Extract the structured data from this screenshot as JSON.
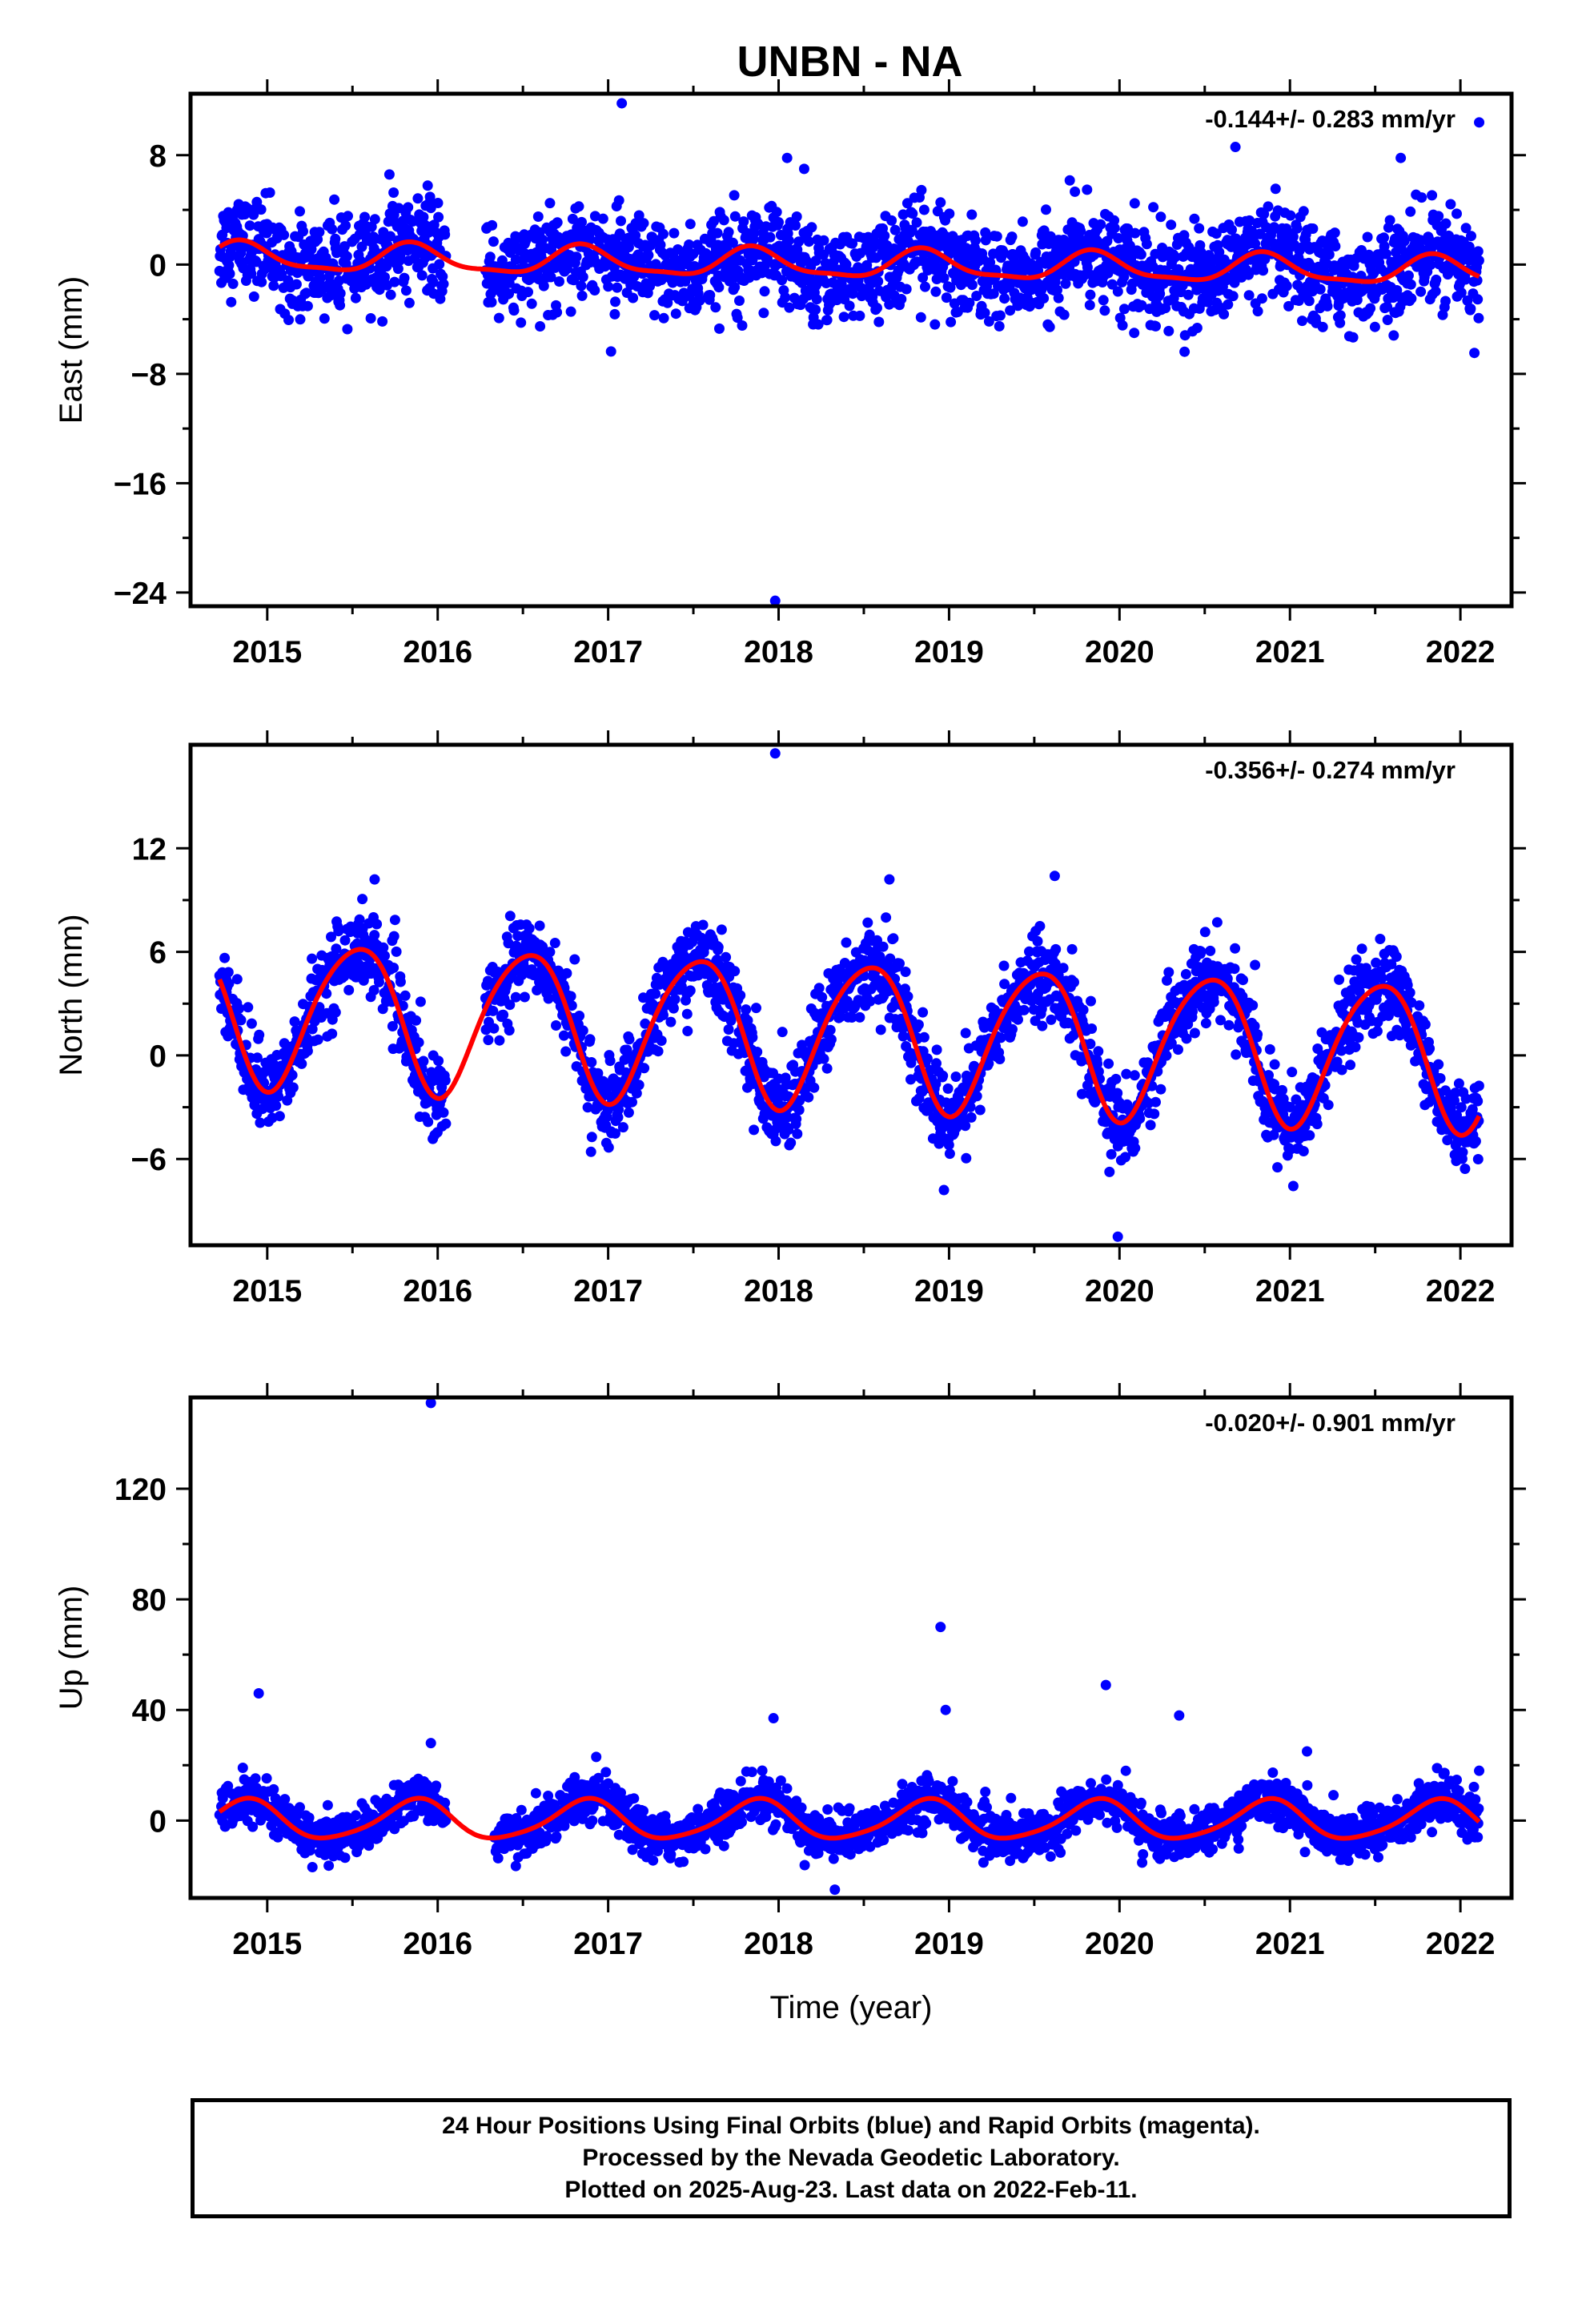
{
  "title": "UNBN - NA",
  "xlabel": "Time (year)",
  "colors": {
    "points": "#0000ff",
    "fit": "#ff0000",
    "frame": "#000000"
  },
  "footer": {
    "line1": "24 Hour Positions Using Final Orbits (blue) and Rapid Orbits (magenta).",
    "line2": "Processed by the Nevada Geodetic Laboratory.",
    "line3": "Plotted on 2025-Aug-23. Last data on 2022-Feb-11."
  },
  "chart_data": [
    {
      "type": "scatter",
      "ylabel": "East (mm)",
      "rate": "-0.144+/- 0.283 mm/yr",
      "xlim": [
        2014.55,
        2022.3
      ],
      "ylim": [
        -25,
        12.5
      ],
      "x_ticks": [
        2015,
        2016,
        2017,
        2018,
        2019,
        2020,
        2021,
        2022
      ],
      "y_ticks": [
        8,
        0,
        -8,
        -16,
        -24
      ],
      "y_tick_labels": [
        "8",
        "0",
        "−8",
        "−16",
        "−24"
      ],
      "data_range": [
        2014.72,
        2022.11
      ],
      "gaps": [
        [
          2016.05,
          2016.28
        ]
      ],
      "series_fit": {
        "name": "",
        "offset": 0.0,
        "trend": -0.144,
        "annual_amp": 1.0,
        "annual_phase": 0.6,
        "semi_amp": 0.3,
        "semi_phase": 0.2
      },
      "noise_sd": 1.7,
      "outliers": [
        [
          2017.08,
          11.8
        ],
        [
          2017.98,
          -24.6
        ],
        [
          2022.11,
          10.4
        ],
        [
          2020.68,
          8.6
        ],
        [
          2018.05,
          7.8
        ],
        [
          2021.65,
          7.8
        ],
        [
          2018.15,
          7.0
        ]
      ]
    },
    {
      "type": "scatter",
      "ylabel": "North (mm)",
      "rate": "-0.356+/- 0.274 mm/yr",
      "xlim": [
        2014.55,
        2022.3
      ],
      "ylim": [
        -11,
        18
      ],
      "x_ticks": [
        2015,
        2016,
        2017,
        2018,
        2019,
        2020,
        2021,
        2022
      ],
      "y_ticks": [
        12,
        6,
        0,
        -6
      ],
      "y_tick_labels": [
        "12",
        "6",
        "0",
        "−6"
      ],
      "data_range": [
        2014.72,
        2022.11
      ],
      "gaps": [
        [
          2016.05,
          2016.28
        ]
      ],
      "series_fit": {
        "name": "",
        "offset": 1.3,
        "trend": -0.356,
        "annual_amp": 4.2,
        "annual_phase": 0.27,
        "semi_amp": 0.5,
        "semi_phase": 0.1
      },
      "noise_sd": 1.2,
      "outliers": [
        [
          2017.98,
          17.5
        ],
        [
          2015.63,
          10.2
        ],
        [
          2018.65,
          10.2
        ],
        [
          2019.62,
          10.4
        ],
        [
          2019.99,
          -10.5
        ],
        [
          2018.97,
          -7.8
        ]
      ]
    },
    {
      "type": "scatter",
      "ylabel": "Up (mm)",
      "rate": "-0.020+/- 0.901 mm/yr",
      "xlim": [
        2014.55,
        2022.3
      ],
      "ylim": [
        -28,
        153
      ],
      "x_ticks": [
        2015,
        2016,
        2017,
        2018,
        2019,
        2020,
        2021,
        2022
      ],
      "y_ticks": [
        120,
        80,
        40,
        0
      ],
      "y_tick_labels": [
        "120",
        "80",
        "40",
        "0"
      ],
      "data_range": [
        2014.72,
        2022.11
      ],
      "gaps": [
        [
          2016.05,
          2016.33
        ]
      ],
      "series_fit": {
        "name": "",
        "offset": 0.0,
        "trend": -0.02,
        "annual_amp": 7.0,
        "annual_phase": 0.62,
        "semi_amp": 1.2,
        "semi_phase": 0.3
      },
      "noise_sd": 4.0,
      "outliers": [
        [
          2015.96,
          151
        ],
        [
          2014.95,
          46
        ],
        [
          2015.96,
          28
        ],
        [
          2016.93,
          23
        ],
        [
          2017.97,
          37
        ],
        [
          2018.95,
          70
        ],
        [
          2018.98,
          40
        ],
        [
          2019.92,
          49
        ],
        [
          2020.35,
          38
        ],
        [
          2021.1,
          25
        ],
        [
          2022.11,
          18
        ],
        [
          2018.33,
          -25
        ]
      ]
    }
  ]
}
